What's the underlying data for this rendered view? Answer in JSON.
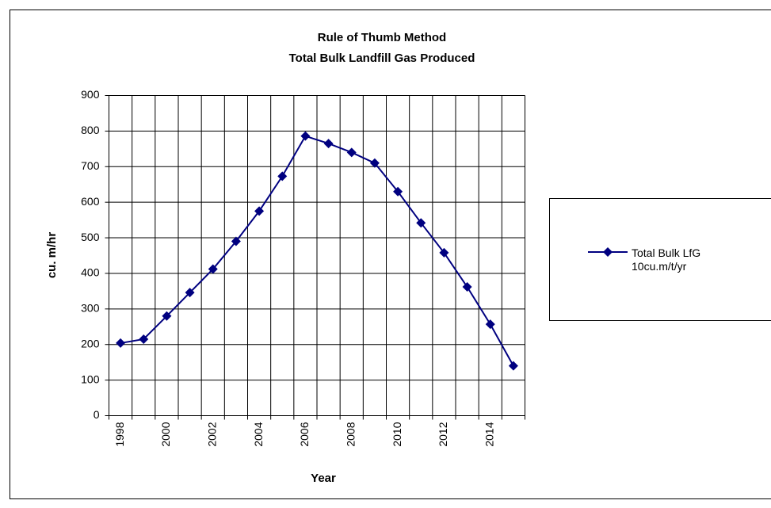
{
  "chart_data": {
    "type": "line",
    "title": "Rule of Thumb Method",
    "subtitle": "Total Bulk Landfill Gas Produced",
    "x_label": "Year",
    "y_label": "cu. m/hr",
    "categories": [
      "1998",
      null,
      "2000",
      null,
      "2002",
      null,
      "2004",
      null,
      "2006",
      null,
      "2008",
      null,
      "2010",
      null,
      "2012",
      null,
      "2014",
      null
    ],
    "series": [
      {
        "name": "Total Bulk LfG 10cu.m/t/yr",
        "color": "#000080",
        "values": [
          204,
          215,
          280,
          346,
          412,
          490,
          575,
          673,
          786,
          765,
          740,
          710,
          630,
          542,
          458,
          362,
          257,
          140
        ]
      }
    ],
    "ylim": [
      0,
      900
    ],
    "yticks": [
      0,
      100,
      200,
      300,
      400,
      500,
      600,
      700,
      800,
      900
    ],
    "grid": true,
    "legend": "right"
  }
}
